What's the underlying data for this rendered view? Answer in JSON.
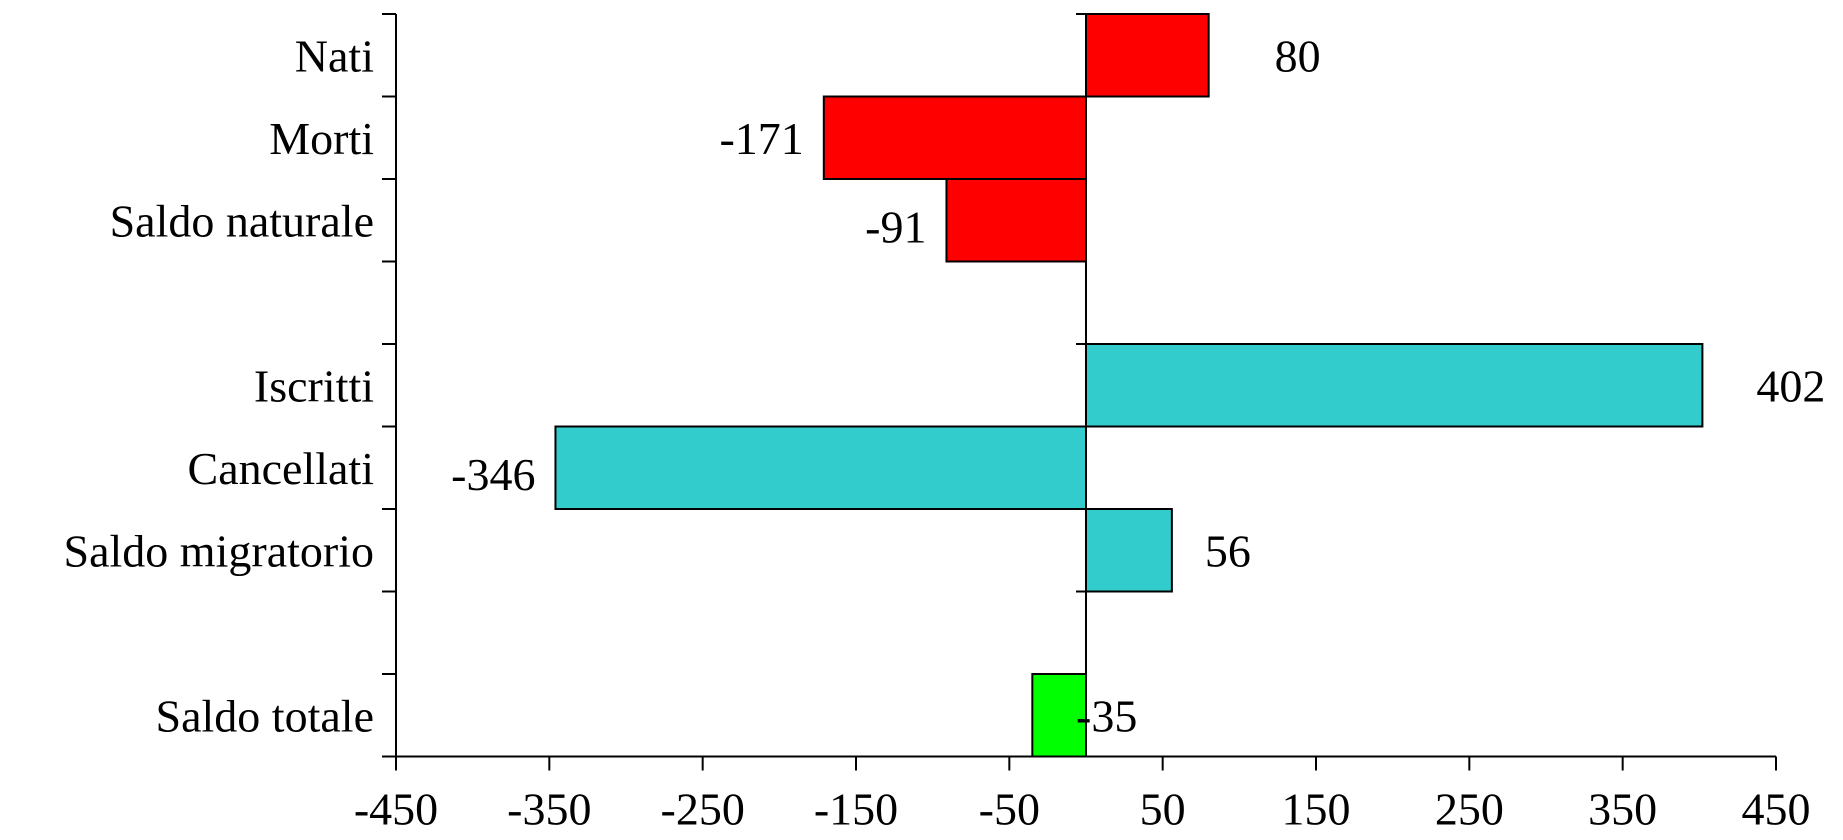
{
  "chart_data": {
    "type": "bar",
    "orientation": "horizontal",
    "title": "",
    "xlabel": "",
    "ylabel": "",
    "xlim": [
      -450,
      450
    ],
    "x_ticks": [
      -450,
      -350,
      -250,
      -150,
      -50,
      50,
      150,
      250,
      350,
      450
    ],
    "grid": false,
    "legend": "none",
    "bars": [
      {
        "category": "Nati",
        "value": 80,
        "label": "80",
        "color": "#ff0000",
        "slot": 0
      },
      {
        "category": "Morti",
        "value": -171,
        "label": "-171",
        "color": "#ff0000",
        "slot": 1
      },
      {
        "category": "Saldo naturale",
        "value": -91,
        "label": "-91",
        "color": "#ff0000",
        "slot": 2
      },
      {
        "category": "Iscritti",
        "value": 402,
        "label": "402",
        "color": "#33cccc",
        "slot": 4
      },
      {
        "category": "Cancellati",
        "value": -346,
        "label": "-346",
        "color": "#33cccc",
        "slot": 5
      },
      {
        "category": "Saldo migratorio",
        "value": 56,
        "label": "56",
        "color": "#33cccc",
        "slot": 6
      },
      {
        "category": "Saldo totale",
        "value": -35,
        "label": "-35",
        "color": "#00ff00",
        "slot": 8
      }
    ]
  }
}
